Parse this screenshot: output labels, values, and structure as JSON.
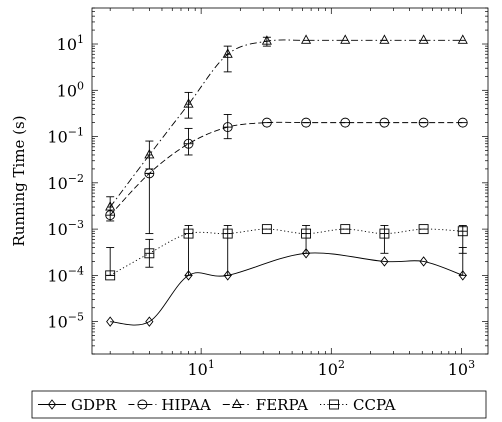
{
  "chart_data": {
    "type": "line",
    "title": "",
    "xlabel": "",
    "ylabel": "Running Time (s)",
    "x_scale": "log",
    "y_scale": "log",
    "xlim": [
      1.45,
      1600
    ],
    "ylim": [
      2e-06,
      60
    ],
    "grid": false,
    "legend_position": "bottom",
    "x_ticks": [
      {
        "value": 10,
        "base": "10",
        "exp": "1"
      },
      {
        "value": 100,
        "base": "10",
        "exp": "2"
      },
      {
        "value": 1000,
        "base": "10",
        "exp": "3"
      }
    ],
    "y_ticks": [
      {
        "value": 1e-05,
        "base": "10",
        "exp": "−5"
      },
      {
        "value": 0.0001,
        "base": "10",
        "exp": "−4"
      },
      {
        "value": 0.001,
        "base": "10",
        "exp": "−3"
      },
      {
        "value": 0.01,
        "base": "10",
        "exp": "−2"
      },
      {
        "value": 0.1,
        "base": "10",
        "exp": "−1"
      },
      {
        "value": 1,
        "base": "10",
        "exp": "0"
      },
      {
        "value": 10,
        "base": "10",
        "exp": "1"
      }
    ],
    "x": [
      2,
      4,
      8,
      16,
      32,
      64,
      128,
      256,
      512,
      1024
    ],
    "series": [
      {
        "name": "GDPR",
        "marker": "diamond",
        "dash": "solid",
        "values": [
          1e-05,
          1e-05,
          0.0001,
          0.0001,
          null,
          0.0003,
          null,
          0.0002,
          0.0002,
          0.0001
        ],
        "err_low": [
          null,
          null,
          null,
          null,
          null,
          null,
          null,
          null,
          null,
          null
        ],
        "err_high": [
          null,
          null,
          null,
          null,
          null,
          null,
          null,
          null,
          null,
          0.0004
        ]
      },
      {
        "name": "HIPAA",
        "marker": "circle",
        "dash": "dashed",
        "values": [
          0.002,
          0.016,
          0.07,
          0.16,
          0.2,
          0.2,
          0.2,
          0.2,
          0.2,
          0.2
        ],
        "err_low": [
          null,
          0.0008,
          0.04,
          0.09,
          null,
          null,
          null,
          null,
          null,
          null
        ],
        "err_high": [
          null,
          null,
          0.15,
          0.3,
          null,
          null,
          null,
          null,
          null,
          null
        ]
      },
      {
        "name": "FERPA",
        "marker": "triangle",
        "dash": "dashdot",
        "values": [
          0.003,
          0.04,
          0.5,
          6,
          11.5,
          12,
          12,
          12,
          12,
          12
        ],
        "err_low": [
          0.0015,
          0.02,
          0.25,
          2.5,
          9,
          null,
          null,
          null,
          null,
          null
        ],
        "err_high": [
          0.005,
          0.08,
          0.9,
          9,
          14,
          null,
          null,
          null,
          null,
          null
        ]
      },
      {
        "name": "CCPA",
        "marker": "square",
        "dash": "dotted",
        "values": [
          0.0001,
          0.0003,
          0.0008,
          0.0008,
          0.001,
          0.0008,
          0.001,
          0.0008,
          0.001,
          0.0009
        ],
        "err_low": [
          null,
          0.00015,
          0.0001,
          0.0001,
          null,
          0.0003,
          null,
          0.0003,
          null,
          0.0003
        ],
        "err_high": [
          0.0004,
          0.0006,
          0.0012,
          0.0012,
          null,
          0.0012,
          null,
          0.0012,
          null,
          0.0012
        ]
      }
    ]
  }
}
